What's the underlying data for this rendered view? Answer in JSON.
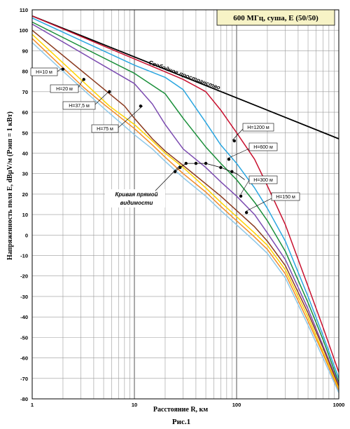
{
  "chart_data": {
    "type": "line",
    "title": "600 МГц, суша, E (50/50)",
    "xlabel": "Расстояние R, км",
    "ylabel": "Напряженность поля E, dBµV/м (Pэип = 1 кВт)",
    "caption": "Рис.1",
    "x_scale": "log",
    "xlim": [
      1,
      1000
    ],
    "ylim": [
      -80,
      110
    ],
    "grid": true,
    "x_ticks": [
      "1",
      "10",
      "100",
      "1000"
    ],
    "y_ticks": [
      "110",
      "100",
      "90",
      "80",
      "70",
      "60",
      "50",
      "40",
      "30",
      "20",
      "10",
      "0",
      "-10",
      "-20",
      "-30",
      "-40",
      "-50",
      "-60",
      "-70",
      "-80"
    ],
    "free_space_label": "Свободное пространство",
    "los_label": [
      "Кривая прямой",
      "видимости"
    ],
    "height_labels": [
      "H=10 м",
      "H=20 м",
      "H=37,5 м",
      "H=75 м",
      "H=1200 м",
      "H=600 м",
      "H=300 м",
      "H=150 м"
    ],
    "colors": {
      "free": "#000000",
      "h1200": "#c8102e",
      "h600": "#2aa6e0",
      "h300": "#1a8f3a",
      "h150": "#7b4bb0",
      "h75": "#8b3a1e",
      "h37": "#ffd400",
      "h20": "#f28c28",
      "h10": "#8fc8e8"
    },
    "series": [
      {
        "name": "Свободное пространство",
        "key": "free",
        "x": [
          1,
          1000
        ],
        "y": [
          107,
          47
        ]
      },
      {
        "name": "H=1200 м",
        "key": "h1200",
        "x": [
          1,
          10,
          30,
          50,
          70,
          100,
          150,
          200,
          300,
          500,
          700,
          1000
        ],
        "y": [
          107,
          86,
          76,
          70,
          61,
          50,
          37,
          24,
          5,
          -25,
          -45,
          -67
        ]
      },
      {
        "name": "H=600 м",
        "key": "h600",
        "x": [
          1,
          10,
          20,
          30,
          50,
          70,
          100,
          150,
          200,
          300,
          500,
          700,
          1000
        ],
        "y": [
          106,
          83,
          77,
          71,
          55,
          44,
          35,
          23,
          13,
          -3,
          -30,
          -49,
          -70
        ]
      },
      {
        "name": "H=300 м",
        "key": "h300",
        "x": [
          1,
          10,
          20,
          30,
          50,
          70,
          100,
          150,
          200,
          300,
          500,
          700,
          1000
        ],
        "y": [
          104,
          79,
          69,
          57,
          43,
          35,
          27,
          16,
          7,
          -8,
          -33,
          -51,
          -72
        ]
      },
      {
        "name": "H=150 м",
        "key": "h150",
        "x": [
          1,
          10,
          15,
          20,
          30,
          50,
          70,
          100,
          150,
          200,
          300,
          500,
          700,
          1000
        ],
        "y": [
          103,
          74,
          64,
          54,
          42,
          33,
          26,
          19,
          10,
          1,
          -12,
          -36,
          -54,
          -73
        ]
      },
      {
        "name": "H=75 м",
        "key": "h75",
        "x": [
          1,
          8,
          10,
          15,
          20,
          30,
          50,
          70,
          100,
          150,
          200,
          300,
          500,
          700,
          1000
        ],
        "y": [
          100,
          63,
          57,
          47,
          41,
          34,
          25,
          19,
          12,
          4,
          -3,
          -15,
          -38,
          -55,
          -74
        ]
      },
      {
        "name": "H=37,5 м",
        "key": "h37",
        "x": [
          1,
          5.7,
          10,
          15,
          20,
          30,
          50,
          70,
          100,
          150,
          200,
          300,
          500,
          700,
          1000
        ],
        "y": [
          98,
          63,
          54,
          46,
          40,
          33,
          23,
          16,
          9,
          1,
          -5,
          -17,
          -40,
          -57,
          -75
        ]
      },
      {
        "name": "H=20 м",
        "key": "h20",
        "x": [
          1,
          3.2,
          5,
          10,
          15,
          20,
          30,
          50,
          70,
          100,
          150,
          200,
          300,
          500,
          700,
          1000
        ],
        "y": [
          96,
          72,
          64,
          52,
          44,
          38,
          30,
          21,
          14,
          7,
          -1,
          -7,
          -19,
          -42,
          -58,
          -76
        ]
      },
      {
        "name": "H=10 м",
        "key": "h10",
        "x": [
          1,
          2,
          5,
          10,
          15,
          20,
          30,
          50,
          70,
          100,
          150,
          200,
          300,
          500,
          700,
          1000
        ],
        "y": [
          94,
          80,
          62,
          49,
          42,
          36,
          28,
          19,
          12,
          5,
          -3,
          -9,
          -21,
          -44,
          -60,
          -77
        ]
      }
    ],
    "los_curve": {
      "x": [
        25,
        28,
        32,
        40,
        50,
        70,
        100,
        120
      ],
      "y": [
        31,
        33,
        35,
        35,
        35,
        33,
        30,
        27
      ]
    },
    "markers": [
      {
        "x": 2,
        "y": 81
      },
      {
        "x": 3.2,
        "y": 76
      },
      {
        "x": 5.7,
        "y": 70
      },
      {
        "x": 11.5,
        "y": 63
      },
      {
        "x": 25,
        "y": 31
      },
      {
        "x": 28,
        "y": 33
      },
      {
        "x": 32,
        "y": 35
      },
      {
        "x": 40,
        "y": 35
      },
      {
        "x": 50,
        "y": 35
      },
      {
        "x": 70,
        "y": 33
      },
      {
        "x": 84,
        "y": 37
      },
      {
        "x": 95,
        "y": 46
      },
      {
        "x": 90,
        "y": 31
      },
      {
        "x": 110,
        "y": 19
      },
      {
        "x": 125,
        "y": 11
      }
    ]
  }
}
